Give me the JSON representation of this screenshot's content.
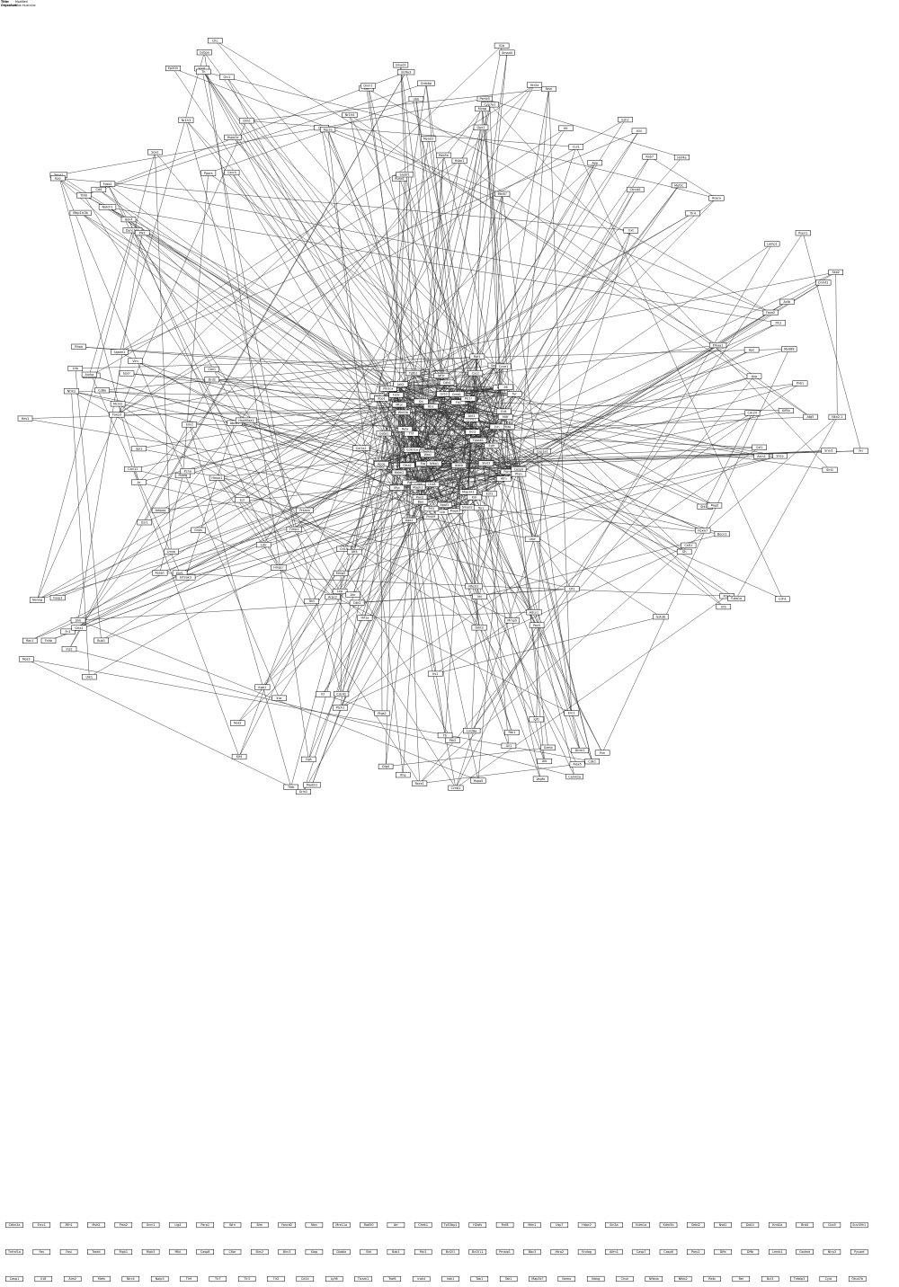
{
  "header": {
    "title_label": "Title:",
    "title_value": "Modified",
    "organism_label": "Organism:",
    "organism_value": "Mus musculus"
  },
  "network": {
    "nodes": [
      {
        "id": "Edil",
        "label": "Edil"
      },
      {
        "id": "Wnt5b",
        "label": "Wnt5b"
      },
      {
        "id": "Fzd2",
        "label": "Fzd2"
      },
      {
        "id": "Ltb",
        "label": "Ltb"
      },
      {
        "id": "Gfra2",
        "label": "Gfra2"
      },
      {
        "id": "Lhx8",
        "label": "Lhx8"
      },
      {
        "id": "Flt1",
        "label": "Flt1"
      },
      {
        "id": "Pgf",
        "label": "Pgf"
      },
      {
        "id": "Tpsb2",
        "label": "Tpsb2"
      },
      {
        "id": "Tpsab1",
        "label": "Tpsab1"
      },
      {
        "id": "Gata1",
        "label": "Gata1"
      },
      {
        "id": "Rb1",
        "label": "Rb1"
      },
      {
        "id": "Mitf",
        "label": "Mitf"
      },
      {
        "id": "Tyr",
        "label": "Tyr"
      },
      {
        "id": "Sox10",
        "label": "Sox10"
      },
      {
        "id": "Pax3",
        "label": "Pax3"
      },
      {
        "id": "Mc1r",
        "label": "Mc1r"
      },
      {
        "id": "Pomc",
        "label": "Pomc"
      },
      {
        "id": "Cdkn1a",
        "label": "Cdkn1a"
      },
      {
        "id": "Ccnd1",
        "label": "Ccnd1"
      },
      {
        "id": "Cdk4",
        "label": "Cdk4"
      },
      {
        "id": "Cdk6",
        "label": "Cdk6"
      },
      {
        "id": "Mdm2",
        "label": "Mdm2"
      },
      {
        "id": "Trp53",
        "label": "Trp53"
      },
      {
        "id": "Atm",
        "label": "Atm"
      },
      {
        "id": "Chek2",
        "label": "Chek2"
      },
      {
        "id": "Brca1",
        "label": "Brca1"
      },
      {
        "id": "Rad51",
        "label": "Rad51"
      },
      {
        "id": "Bax",
        "label": "Bax"
      },
      {
        "id": "Bcl2",
        "label": "Bcl2"
      },
      {
        "id": "Casp3",
        "label": "Casp3"
      },
      {
        "id": "Casp9",
        "label": "Casp9"
      },
      {
        "id": "Apaf1",
        "label": "Apaf1"
      },
      {
        "id": "Cycs",
        "label": "Cycs"
      },
      {
        "id": "Akt1",
        "label": "Akt1"
      },
      {
        "id": "Pik3ca",
        "label": "Pik3ca"
      },
      {
        "id": "Pten",
        "label": "Pten"
      },
      {
        "id": "Mtor",
        "label": "Mtor"
      },
      {
        "id": "Egfr",
        "label": "Egfr"
      },
      {
        "id": "Grb2",
        "label": "Grb2"
      },
      {
        "id": "Sos1",
        "label": "Sos1"
      },
      {
        "id": "Hras",
        "label": "Hras"
      },
      {
        "id": "Raf1",
        "label": "Raf1"
      },
      {
        "id": "Map2k1",
        "label": "Map2k1"
      },
      {
        "id": "Mapk1",
        "label": "Mapk1"
      },
      {
        "id": "Mapk3",
        "label": "Mapk3"
      },
      {
        "id": "Jun",
        "label": "Jun"
      },
      {
        "id": "Fos",
        "label": "Fos"
      },
      {
        "id": "Myc",
        "label": "Myc"
      },
      {
        "id": "Max",
        "label": "Max"
      },
      {
        "id": "Src",
        "label": "Src"
      },
      {
        "id": "Stat3",
        "label": "Stat3"
      },
      {
        "id": "Jak2",
        "label": "Jak2"
      },
      {
        "id": "Il6",
        "label": "Il6"
      },
      {
        "id": "Tnf",
        "label": "Tnf"
      },
      {
        "id": "Nfkb1",
        "label": "Nfkb1"
      },
      {
        "id": "Rela",
        "label": "Rela"
      },
      {
        "id": "Ikbkb",
        "label": "Ikbkb"
      },
      {
        "id": "Tgfb1",
        "label": "Tgfb1"
      },
      {
        "id": "Smad2",
        "label": "Smad2"
      },
      {
        "id": "Smad3",
        "label": "Smad3"
      },
      {
        "id": "Smad4",
        "label": "Smad4"
      },
      {
        "id": "Ctnnb1",
        "label": "Ctnnb1"
      },
      {
        "id": "Apc",
        "label": "Apc"
      },
      {
        "id": "Gsk3b",
        "label": "Gsk3b"
      },
      {
        "id": "Axin1",
        "label": "Axin1"
      },
      {
        "id": "Notch1",
        "label": "Notch1"
      },
      {
        "id": "Hes1",
        "label": "Hes1"
      },
      {
        "id": "Shh",
        "label": "Shh"
      },
      {
        "id": "Ptch1",
        "label": "Ptch1"
      },
      {
        "id": "Gli1",
        "label": "Gli1"
      },
      {
        "id": "Vegfa",
        "label": "Vegfa"
      },
      {
        "id": "Kdr",
        "label": "Kdr"
      },
      {
        "id": "Hif1a",
        "label": "Hif1a"
      },
      {
        "id": "Vhl",
        "label": "Vhl"
      },
      {
        "id": "Esr1",
        "label": "Esr1"
      },
      {
        "id": "Ar",
        "label": "Ar"
      },
      {
        "id": "Ep300",
        "label": "Ep300"
      },
      {
        "id": "Crebbp",
        "label": "Crebbp"
      },
      {
        "id": "Hdac1",
        "label": "Hdac1"
      },
      {
        "id": "Ezh2",
        "label": "Ezh2"
      },
      {
        "id": "Dnmt1",
        "label": "Dnmt1"
      },
      {
        "id": "Cdh1",
        "label": "Cdh1"
      },
      {
        "id": "Snai1",
        "label": "Snai1"
      },
      {
        "id": "Twist1",
        "label": "Twist1"
      },
      {
        "id": "Vim",
        "label": "Vim"
      },
      {
        "id": "Fn1",
        "label": "Fn1"
      },
      {
        "id": "Itgb1",
        "label": "Itgb1"
      },
      {
        "id": "Ptk2",
        "label": "Ptk2"
      },
      {
        "id": "Pxn",
        "label": "Pxn"
      },
      {
        "id": "Col1a1",
        "label": "Col1a1"
      },
      {
        "id": "Mmp2",
        "label": "Mmp2"
      },
      {
        "id": "Mmp9",
        "label": "Mmp9"
      },
      {
        "id": "Timp1",
        "label": "Timp1"
      },
      {
        "id": "Cxcl12",
        "label": "Cxcl12"
      },
      {
        "id": "Cxcr4",
        "label": "Cxcr4"
      },
      {
        "id": "Ccl2",
        "label": "Ccl2"
      },
      {
        "id": "Il1b",
        "label": "Il1b"
      },
      {
        "id": "Tlr4",
        "label": "Tlr4"
      },
      {
        "id": "Myd88",
        "label": "Myd88"
      },
      {
        "id": "Irf3",
        "label": "Irf3"
      },
      {
        "id": "Ifnb1",
        "label": "Ifnb1"
      },
      {
        "id": "Cd4",
        "label": "Cd4"
      },
      {
        "id": "Cd8a",
        "label": "Cd8a"
      },
      {
        "id": "Foxp3",
        "label": "Foxp3"
      },
      {
        "id": "Il2",
        "label": "Il2"
      },
      {
        "id": "Ifng",
        "label": "Ifng"
      },
      {
        "id": "Gzmb",
        "label": "Gzmb"
      },
      {
        "id": "Prf1",
        "label": "Prf1"
      },
      {
        "id": "Cd19",
        "label": "Cd19"
      },
      {
        "id": "Pax5",
        "label": "Pax5"
      },
      {
        "id": "Ebf1",
        "label": "Ebf1"
      },
      {
        "id": "Spi1",
        "label": "Spi1"
      },
      {
        "id": "Cebpa",
        "label": "Cebpa"
      },
      {
        "id": "Runx1",
        "label": "Runx1"
      },
      {
        "id": "Kit",
        "label": "Kit"
      },
      {
        "id": "Kitl",
        "label": "Kitl"
      },
      {
        "id": "Flt3",
        "label": "Flt3"
      },
      {
        "id": "Csf1r",
        "label": "Csf1r"
      },
      {
        "id": "Csf1",
        "label": "Csf1"
      },
      {
        "id": "Epo",
        "label": "Epo"
      },
      {
        "id": "Epor",
        "label": "Epor"
      },
      {
        "id": "Ins2",
        "label": "Ins2"
      },
      {
        "id": "Insr",
        "label": "Insr"
      },
      {
        "id": "Irs1",
        "label": "Irs1"
      },
      {
        "id": "Igf1",
        "label": "Igf1"
      },
      {
        "id": "Igf1r",
        "label": "Igf1r"
      },
      {
        "id": "Lep",
        "label": "Lep"
      },
      {
        "id": "Lepr",
        "label": "Lepr"
      },
      {
        "id": "Adipoq",
        "label": "Adipoq"
      },
      {
        "id": "Pparg",
        "label": "Pparg"
      },
      {
        "id": "Ppara",
        "label": "Ppara"
      },
      {
        "id": "Srebf1",
        "label": "Srebf1"
      },
      {
        "id": "Fasn",
        "label": "Fasn"
      },
      {
        "id": "Acaca",
        "label": "Acaca"
      },
      {
        "id": "Prkaa1",
        "label": "Prkaa1"
      },
      {
        "id": "Stk11",
        "label": "Stk11"
      },
      {
        "id": "Sirt1",
        "label": "Sirt1"
      },
      {
        "id": "Foxo1",
        "label": "Foxo1"
      },
      {
        "id": "Foxo3",
        "label": "Foxo3"
      },
      {
        "id": "Nos3",
        "label": "Nos3"
      },
      {
        "id": "Nos2",
        "label": "Nos2"
      },
      {
        "id": "Ptgs2",
        "label": "Ptgs2"
      },
      {
        "id": "Alox5",
        "label": "Alox5"
      },
      {
        "id": "Cyp1a1",
        "label": "Cyp1a1"
      },
      {
        "id": "Ahr",
        "label": "Ahr"
      },
      {
        "id": "Nfe2l2",
        "label": "Nfe2l2"
      },
      {
        "id": "Keap1",
        "label": "Keap1"
      },
      {
        "id": "Hmox1",
        "label": "Hmox1"
      },
      {
        "id": "Sod1",
        "label": "Sod1"
      },
      {
        "id": "Cat",
        "label": "Cat"
      },
      {
        "id": "Gpx1",
        "label": "Gpx1"
      },
      {
        "id": "App",
        "label": "App"
      },
      {
        "id": "Psen1",
        "label": "Psen1"
      },
      {
        "id": "Mapt",
        "label": "Mapt"
      },
      {
        "id": "Snca",
        "label": "Snca"
      },
      {
        "id": "Bdnf",
        "label": "Bdnf"
      },
      {
        "id": "Ntrk2",
        "label": "Ntrk2"
      },
      {
        "id": "Gria1",
        "label": "Gria1"
      },
      {
        "id": "Grin1",
        "label": "Grin1"
      },
      {
        "id": "Dlg4",
        "label": "Dlg4"
      },
      {
        "id": "Camk2a",
        "label": "Camk2a"
      },
      {
        "id": "Creb1",
        "label": "Creb1"
      },
      {
        "id": "Prkaca",
        "label": "Prkaca"
      },
      {
        "id": "Adcy1",
        "label": "Adcy1"
      },
      {
        "id": "Gnas",
        "label": "Gnas"
      },
      {
        "id": "Drd2",
        "label": "Drd2"
      },
      {
        "id": "Th",
        "label": "Th"
      },
      {
        "id": "Slc6a3",
        "label": "Slc6a3"
      },
      {
        "id": "Htr2a",
        "label": "Htr2a"
      },
      {
        "id": "Oxt",
        "label": "Oxt"
      },
      {
        "id": "Avp",
        "label": "Avp"
      },
      {
        "id": "Gh",
        "label": "Gh"
      },
      {
        "id": "Prl",
        "label": "Prl"
      },
      {
        "id": "Tshb",
        "label": "Tshb"
      },
      {
        "id": "Lhb",
        "label": "Lhb"
      },
      {
        "id": "Fshb",
        "label": "Fshb"
      },
      {
        "id": "Cga",
        "label": "Cga"
      },
      {
        "id": "Ttr",
        "label": "Ttr"
      },
      {
        "id": "Alb",
        "label": "Alb"
      },
      {
        "id": "Apoe",
        "label": "Apoe"
      },
      {
        "id": "Ldlr",
        "label": "Ldlr"
      },
      {
        "id": "Pcsk9",
        "label": "Pcsk9"
      },
      {
        "id": "Hmgcr",
        "label": "Hmgcr"
      },
      {
        "id": "Abca1",
        "label": "Abca1"
      },
      {
        "id": "Nr1h3",
        "label": "Nr1h3"
      },
      {
        "id": "Nr1h4",
        "label": "Nr1h4"
      },
      {
        "id": "Cyp7a1",
        "label": "Cyp7a1"
      },
      {
        "id": "Hnf4a",
        "label": "Hnf4a"
      },
      {
        "id": "Foxa2",
        "label": "Foxa2"
      },
      {
        "id": "Pdx1",
        "label": "Pdx1"
      },
      {
        "id": "Nkx2-1",
        "label": "Nkx2-1"
      },
      {
        "id": "Sox2",
        "label": "Sox2"
      },
      {
        "id": "Pou5f1",
        "label": "Pou5f1"
      },
      {
        "id": "Nanog",
        "label": "Nanog"
      },
      {
        "id": "Klf4",
        "label": "Klf4"
      },
      {
        "id": "Lin28a",
        "label": "Lin28a"
      },
      {
        "id": "Dicer1",
        "label": "Dicer1"
      },
      {
        "id": "Ago2",
        "label": "Ago2"
      },
      {
        "id": "Tert",
        "label": "Tert"
      },
      {
        "id": "Terc",
        "label": "Terc"
      },
      {
        "id": "Lmna",
        "label": "Lmna"
      },
      {
        "id": "Emd",
        "label": "Emd"
      },
      {
        "id": "Dmd",
        "label": "Dmd"
      },
      {
        "id": "Myod1",
        "label": "Myod1"
      },
      {
        "id": "Myog",
        "label": "Myog"
      },
      {
        "id": "Mef2c",
        "label": "Mef2c"
      },
      {
        "id": "Actb",
        "label": "Actb"
      },
      {
        "id": "Tuba1a",
        "label": "Tuba1a"
      },
      {
        "id": "Kif5b",
        "label": "Kif5b"
      },
      {
        "id": "Dync1h1",
        "label": "Dync1h1"
      },
      {
        "id": "Rhoa",
        "label": "Rhoa"
      },
      {
        "id": "Rac1",
        "label": "Rac1"
      },
      {
        "id": "Cdc42",
        "label": "Cdc42"
      },
      {
        "id": "Rock1",
        "label": "Rock1"
      },
      {
        "id": "Pak1",
        "label": "Pak1"
      },
      {
        "id": "Wasl",
        "label": "Wasl"
      },
      {
        "id": "Arpc2",
        "label": "Arpc2"
      },
      {
        "id": "Cfl1",
        "label": "Cfl1"
      },
      {
        "id": "Ezr",
        "label": "Ezr"
      },
      {
        "id": "Cav1",
        "label": "Cav1"
      },
      {
        "id": "Cltc",
        "label": "Cltc"
      },
      {
        "id": "Dnm1",
        "label": "Dnm1"
      },
      {
        "id": "Rab5a",
        "label": "Rab5a"
      },
      {
        "id": "Rab7",
        "label": "Rab7"
      },
      {
        "id": "Lamp1",
        "label": "Lamp1"
      },
      {
        "id": "Becn1",
        "label": "Becn1"
      },
      {
        "id": "Atg5",
        "label": "Atg5"
      },
      {
        "id": "Map1lc3b",
        "label": "Map1lc3b"
      },
      {
        "id": "Sqstm1",
        "label": "Sqstm1"
      },
      {
        "id": "Ulk1",
        "label": "Ulk1"
      },
      {
        "id": "Tfeb",
        "label": "Tfeb"
      },
      {
        "id": "Hspa5",
        "label": "Hspa5"
      },
      {
        "id": "Ern1",
        "label": "Ern1"
      },
      {
        "id": "Xbp1",
        "label": "Xbp1"
      },
      {
        "id": "Atf4",
        "label": "Atf4"
      },
      {
        "id": "Ddit3",
        "label": "Ddit3"
      },
      {
        "id": "Eif2ak3",
        "label": "Eif2ak3"
      },
      {
        "id": "Hsp90aa1",
        "label": "Hsp90aa1"
      },
      {
        "id": "Hspa1a",
        "label": "Hspa1a"
      },
      {
        "id": "Ubb",
        "label": "Ubb"
      },
      {
        "id": "Psmb5",
        "label": "Psmb5"
      },
      {
        "id": "Cul1",
        "label": "Cul1"
      },
      {
        "id": "Skp2",
        "label": "Skp2"
      },
      {
        "id": "Fbxw7",
        "label": "Fbxw7"
      },
      {
        "id": "Cdc20",
        "label": "Cdc20"
      },
      {
        "id": "Plk1",
        "label": "Plk1"
      },
      {
        "id": "Aurka",
        "label": "Aurka"
      },
      {
        "id": "Bub1",
        "label": "Bub1"
      },
      {
        "id": "Mad2l1",
        "label": "Mad2l1"
      },
      {
        "id": "Ccnb1",
        "label": "Ccnb1"
      },
      {
        "id": "Cdk1",
        "label": "Cdk1"
      },
      {
        "id": "Ccne1",
        "label": "Ccne1"
      },
      {
        "id": "Cdk2",
        "label": "Cdk2"
      },
      {
        "id": "E2f1",
        "label": "E2f1"
      },
      {
        "id": "Pcna",
        "label": "Pcna"
      },
      {
        "id": "Mcm2",
        "label": "Mcm2"
      },
      {
        "id": "Orc1",
        "label": "Orc1"
      },
      {
        "id": "Top2a",
        "label": "Top2a"
      },
      {
        "id": "Mki67",
        "label": "Mki67"
      }
    ],
    "orphans_row1": [
      "Cdkn2a",
      "Ercc1",
      "Mlh1",
      "Msh2",
      "Pms2",
      "Xrcc1",
      "Lig4",
      "Parp1",
      "Wrn",
      "Blm",
      "Fancd2",
      "Nbn",
      "Mre11a",
      "Rad50",
      "Atr",
      "Chek1",
      "Tp53bp1",
      "H2afx",
      "Rnf8",
      "Mdc1",
      "Usp7",
      "Hdac2",
      "Sin3a",
      "Kdm1a",
      "Kdm5b",
      "Setd2",
      "Nsd1",
      "Dot1l",
      "Kmt2a",
      "Brd4",
      "Cbx5",
      "Suv39h1"
    ],
    "orphans_row2": [
      "Tnfrsf1a",
      "Fas",
      "Fasl",
      "Tradd",
      "Ripk1",
      "Ripk3",
      "Mlkl",
      "Casp8",
      "Cflar",
      "Birc2",
      "Birc3",
      "Xiap",
      "Diablo",
      "Bid",
      "Bak1",
      "Mcl1",
      "Bcl2l1",
      "Bcl2l11",
      "Pmaip1",
      "Bbc3",
      "Htra2",
      "Endog",
      "Aifm1",
      "Casp7",
      "Casp6",
      "Parp2",
      "Dffa",
      "Dffb",
      "Lmnb1",
      "Gsdmd",
      "Nlrp3",
      "Pycard"
    ],
    "orphans_row3": [
      "Casp1",
      "Il18",
      "Aim2",
      "Mefv",
      "Nlrc4",
      "Naip5",
      "Tlr9",
      "Tlr7",
      "Tlr3",
      "Tlr2",
      "Cd14",
      "Ly96",
      "Ticam1",
      "Traf6",
      "Irak4",
      "Irak1",
      "Tab1",
      "Tak1",
      "Map3k7",
      "Nemo",
      "Ikbkg",
      "Chuk",
      "Nfkbia",
      "Nfkb2",
      "Relb",
      "Rel",
      "Bcl3",
      "Tnfaip3",
      "Cyld",
      "Otud7b"
    ]
  }
}
